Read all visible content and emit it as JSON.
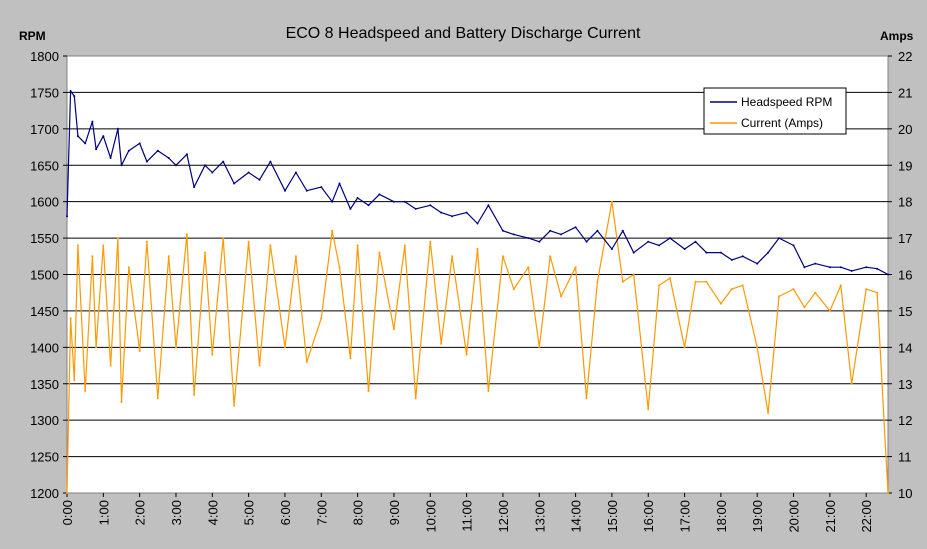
{
  "chart_data": {
    "type": "line",
    "title": "ECO 8 Headspeed and Battery Discharge Current",
    "ylabel_left": "RPM",
    "ylabel_right": "Amps",
    "xlabel": "",
    "x_ticks": [
      "0:00",
      "1:00",
      "2:00",
      "3:00",
      "4:00",
      "5:00",
      "6:00",
      "7:00",
      "8:00",
      "9:00",
      "10:00",
      "11:00",
      "12:00",
      "13:00",
      "14:00",
      "15:00",
      "16:00",
      "17:00",
      "18:00",
      "19:00",
      "20:00",
      "21:00",
      "22:00"
    ],
    "xlim_minutes": [
      0,
      22.6
    ],
    "ylim_left": [
      1200,
      1800
    ],
    "ylim_right": [
      10,
      22
    ],
    "y_ticks_left": [
      "1200",
      "1250",
      "1300",
      "1350",
      "1400",
      "1450",
      "1500",
      "1550",
      "1600",
      "1650",
      "1700",
      "1750",
      "1800"
    ],
    "y_ticks_right": [
      "10",
      "11",
      "12",
      "13",
      "14",
      "15",
      "16",
      "17",
      "18",
      "19",
      "20",
      "21",
      "22"
    ],
    "grid": "horizontal",
    "legend_position": "top-right",
    "series": [
      {
        "name": "Headspeed RPM",
        "axis": "left",
        "color": "#000080",
        "x": [
          0,
          0.1,
          0.2,
          0.3,
          0.5,
          0.7,
          0.8,
          1.0,
          1.2,
          1.4,
          1.5,
          1.7,
          2.0,
          2.2,
          2.5,
          2.8,
          3.0,
          3.3,
          3.5,
          3.8,
          4.0,
          4.3,
          4.6,
          5.0,
          5.3,
          5.6,
          6.0,
          6.3,
          6.6,
          7.0,
          7.3,
          7.5,
          7.8,
          8.0,
          8.3,
          8.6,
          9.0,
          9.3,
          9.6,
          10.0,
          10.3,
          10.6,
          11.0,
          11.3,
          11.6,
          12.0,
          12.3,
          12.7,
          13.0,
          13.3,
          13.6,
          14.0,
          14.3,
          14.6,
          15.0,
          15.3,
          15.6,
          16.0,
          16.3,
          16.6,
          17.0,
          17.3,
          17.6,
          18.0,
          18.3,
          18.6,
          19.0,
          19.3,
          19.6,
          20.0,
          20.3,
          20.6,
          21.0,
          21.3,
          21.6,
          22.0,
          22.3,
          22.6
        ],
        "values": [
          1580,
          1752,
          1745,
          1690,
          1680,
          1710,
          1672,
          1690,
          1660,
          1700,
          1650,
          1670,
          1680,
          1655,
          1670,
          1660,
          1650,
          1665,
          1620,
          1650,
          1640,
          1655,
          1625,
          1640,
          1630,
          1655,
          1615,
          1640,
          1615,
          1620,
          1600,
          1625,
          1590,
          1605,
          1595,
          1610,
          1600,
          1600,
          1590,
          1595,
          1585,
          1580,
          1585,
          1570,
          1595,
          1560,
          1555,
          1550,
          1545,
          1560,
          1555,
          1565,
          1545,
          1560,
          1535,
          1560,
          1530,
          1545,
          1540,
          1550,
          1535,
          1545,
          1530,
          1530,
          1520,
          1525,
          1515,
          1530,
          1550,
          1540,
          1510,
          1515,
          1510,
          1510,
          1505,
          1510,
          1508,
          1500
        ]
      },
      {
        "name": "Current (Amps)",
        "axis": "right",
        "color": "#ff9900",
        "x": [
          0,
          0.1,
          0.2,
          0.3,
          0.5,
          0.7,
          0.8,
          1.0,
          1.2,
          1.4,
          1.5,
          1.7,
          2.0,
          2.2,
          2.5,
          2.8,
          3.0,
          3.3,
          3.5,
          3.8,
          4.0,
          4.3,
          4.6,
          5.0,
          5.3,
          5.6,
          6.0,
          6.3,
          6.6,
          7.0,
          7.3,
          7.5,
          7.8,
          8.0,
          8.3,
          8.6,
          9.0,
          9.3,
          9.6,
          10.0,
          10.3,
          10.6,
          11.0,
          11.3,
          11.6,
          12.0,
          12.3,
          12.7,
          13.0,
          13.3,
          13.6,
          14.0,
          14.3,
          14.6,
          15.0,
          15.3,
          15.6,
          16.0,
          16.3,
          16.6,
          17.0,
          17.3,
          17.6,
          18.0,
          18.3,
          18.6,
          19.0,
          19.3,
          19.6,
          20.0,
          20.3,
          20.6,
          21.0,
          21.3,
          21.6,
          22.0,
          22.3,
          22.6
        ],
        "values": [
          10.0,
          14.8,
          13.1,
          16.8,
          12.8,
          16.5,
          14.0,
          16.8,
          13.5,
          17.0,
          12.5,
          16.2,
          13.9,
          16.9,
          12.6,
          16.5,
          14.0,
          17.1,
          12.7,
          16.6,
          13.8,
          17.0,
          12.4,
          16.9,
          13.5,
          16.8,
          14.0,
          16.5,
          13.6,
          14.8,
          17.2,
          16.2,
          13.7,
          16.8,
          12.8,
          16.6,
          14.5,
          16.8,
          12.6,
          16.9,
          14.1,
          16.5,
          13.8,
          16.7,
          12.8,
          16.5,
          15.6,
          16.2,
          14.0,
          16.5,
          15.4,
          16.2,
          12.6,
          15.8,
          18.0,
          15.8,
          16.0,
          12.3,
          15.7,
          15.9,
          14.0,
          15.8,
          15.8,
          15.2,
          15.6,
          15.7,
          14.0,
          12.2,
          15.4,
          15.6,
          15.1,
          15.5,
          15.0,
          15.7,
          13.0,
          15.6,
          15.5,
          10.0
        ]
      }
    ]
  }
}
